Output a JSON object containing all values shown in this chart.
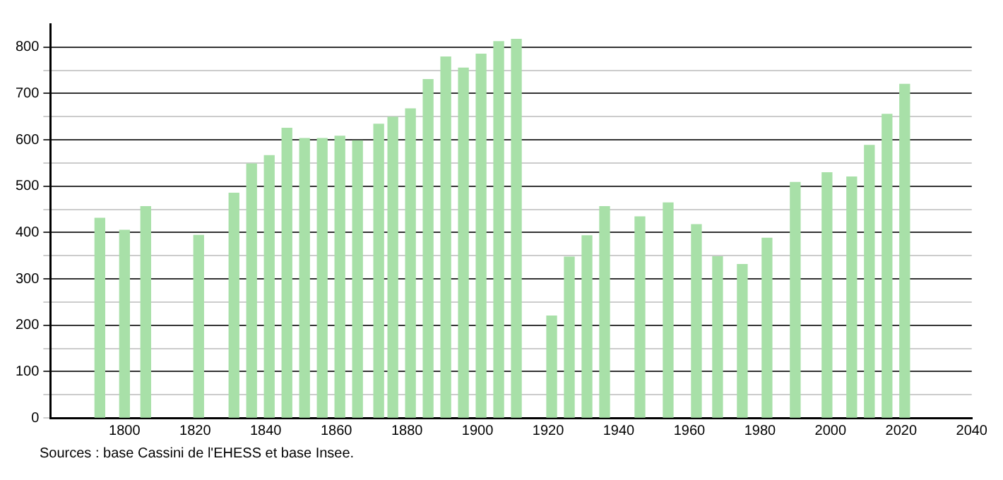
{
  "chart_data": {
    "type": "bar",
    "x": [
      1793,
      1800,
      1806,
      1821,
      1831,
      1836,
      1841,
      1846,
      1851,
      1856,
      1861,
      1866,
      1872,
      1876,
      1881,
      1886,
      1891,
      1896,
      1901,
      1906,
      1911,
      1921,
      1926,
      1931,
      1936,
      1946,
      1954,
      1962,
      1968,
      1975,
      1982,
      1990,
      1999,
      2006,
      2011,
      2016,
      2021
    ],
    "values": [
      431,
      405,
      456,
      394,
      485,
      548,
      566,
      625,
      603,
      603,
      608,
      598,
      634,
      649,
      667,
      730,
      779,
      755,
      785,
      812,
      817,
      220,
      347,
      393,
      456,
      434,
      464,
      417,
      348,
      331,
      388,
      508,
      529,
      520,
      588,
      655,
      720
    ],
    "color": "#a8e0a8",
    "xlim": [
      1779,
      2040
    ],
    "xticks": [
      1800,
      1820,
      1840,
      1860,
      1880,
      1900,
      1920,
      1940,
      1960,
      1980,
      2000,
      2020,
      2040
    ],
    "ylim": [
      0,
      850
    ],
    "yticks": [
      0,
      {
        "value": 50,
        "label": null
      },
      100,
      {
        "value": 150,
        "label": null
      },
      200,
      {
        "value": 250,
        "label": null
      },
      300,
      {
        "value": 350,
        "label": null
      },
      400,
      {
        "value": 450,
        "label": null
      },
      500,
      {
        "value": 550,
        "label": null
      },
      600,
      {
        "value": 650,
        "label": null
      },
      700,
      {
        "value": 750,
        "label": null
      },
      800
    ],
    "grid": "y",
    "legend": false,
    "annotations": [
      "Sources : base Cassini de l'EHESS et base Insee."
    ]
  }
}
